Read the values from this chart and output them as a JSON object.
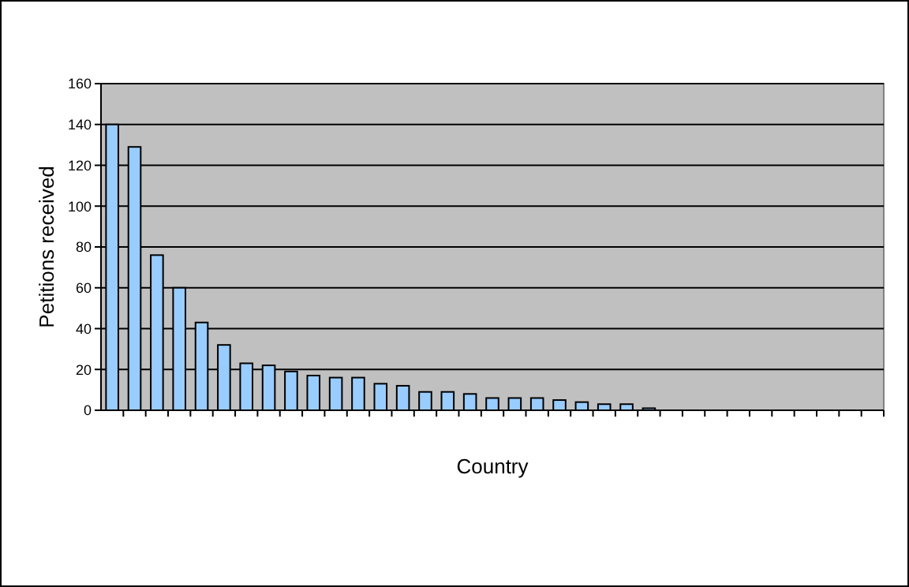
{
  "chart_data": {
    "type": "bar",
    "xlabel": "Country",
    "ylabel": "Petitions received",
    "categories": [
      null,
      null,
      null,
      null,
      null,
      null,
      null,
      null,
      null,
      null,
      null,
      null,
      null,
      null,
      null,
      null,
      null,
      null,
      null,
      null,
      null,
      null,
      null,
      null,
      null,
      null,
      null,
      null,
      null,
      null,
      null,
      null,
      null,
      null,
      null
    ],
    "values": [
      140,
      129,
      76,
      60,
      43,
      32,
      23,
      22,
      19,
      17,
      16,
      16,
      13,
      12,
      9,
      9,
      8,
      6,
      6,
      6,
      5,
      4,
      3,
      3,
      1,
      0,
      0,
      0,
      0,
      0,
      0,
      0,
      0,
      0,
      0
    ],
    "color": "#99ccff",
    "ylim": [
      0,
      160
    ],
    "yticks": [
      0,
      20,
      40,
      60,
      80,
      100,
      120,
      140,
      160
    ],
    "grid": "y"
  }
}
